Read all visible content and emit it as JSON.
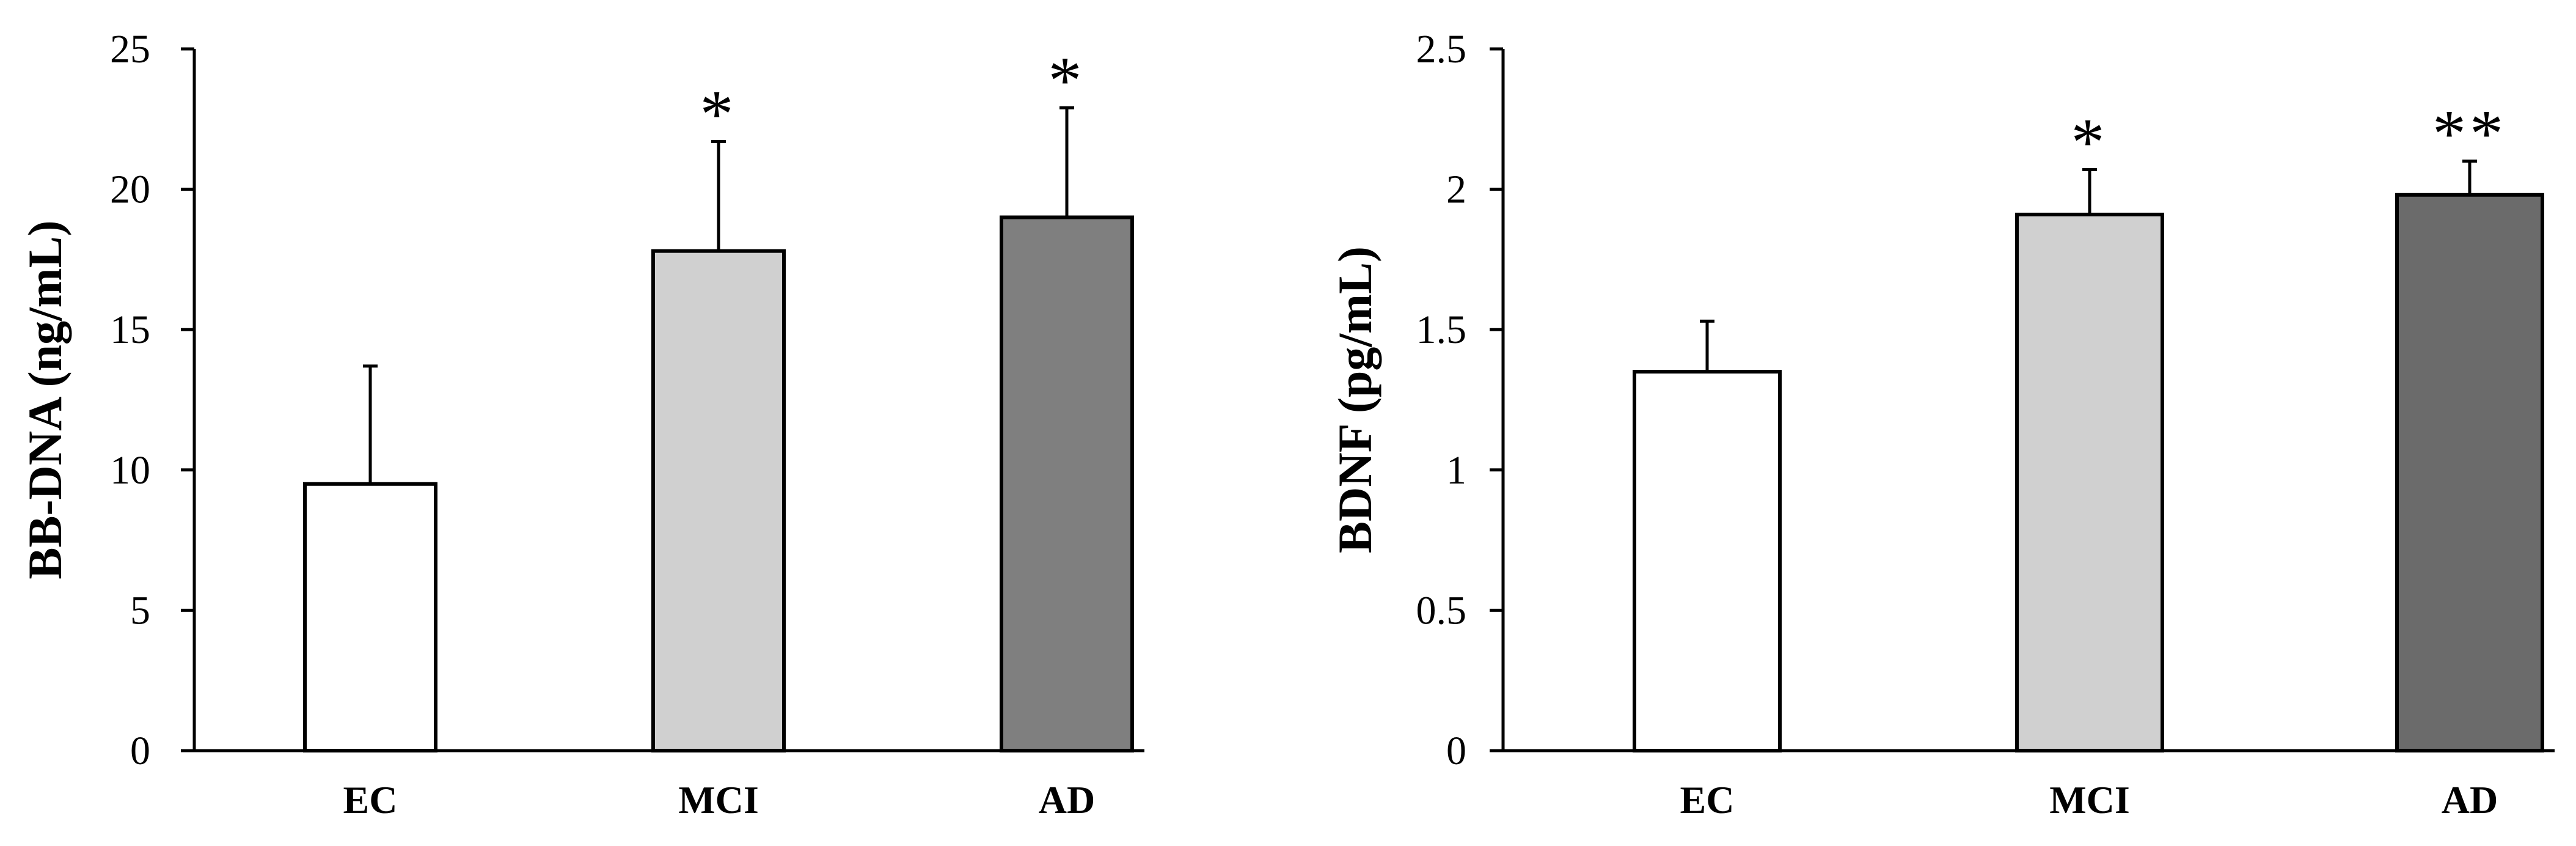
{
  "chart_data": [
    {
      "type": "bar",
      "categories": [
        "EC",
        "MCI",
        "AD"
      ],
      "values": [
        9.5,
        17.8,
        19.0
      ],
      "error_plus": [
        4.2,
        3.9,
        3.9
      ],
      "significance": [
        "",
        "*",
        "*"
      ],
      "bar_colors": [
        "#ffffff",
        "#d0d0d0",
        "#7f7f7f"
      ],
      "ylabel": "BB-DNA (ng/mL)",
      "xlabel": "",
      "ylim": [
        0,
        25
      ],
      "yticks": [
        "0",
        "5",
        "10",
        "15",
        "20",
        "25"
      ],
      "grid": false,
      "legend": "none"
    },
    {
      "type": "bar",
      "categories": [
        "EC",
        "MCI",
        "AD"
      ],
      "values": [
        1.35,
        1.91,
        1.98
      ],
      "error_plus": [
        0.18,
        0.16,
        0.12
      ],
      "significance": [
        "",
        "*",
        "**"
      ],
      "bar_colors": [
        "#ffffff",
        "#d0d0d0",
        "#6b6b6b"
      ],
      "ylabel": "BDNF (pg/mL)",
      "xlabel": "",
      "ylim": [
        0,
        2.5
      ],
      "yticks": [
        "0",
        "0.5",
        "1",
        "1.5",
        "2",
        "2.5"
      ],
      "grid": false,
      "legend": "none"
    }
  ]
}
